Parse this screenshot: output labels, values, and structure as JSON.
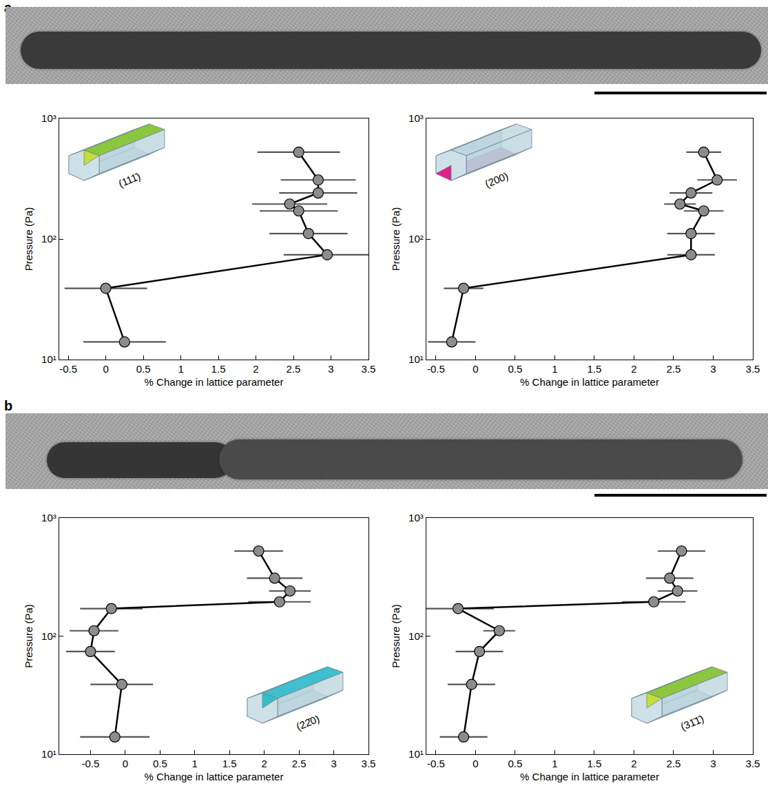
{
  "panels": [
    {
      "label": "a"
    },
    {
      "label": "b"
    }
  ],
  "chart_data": [
    {
      "type": "line",
      "marker": "circle",
      "line_style": "solid",
      "color": "#8c8c8c",
      "log": "y",
      "xlabel": "% Change in lattice parameter",
      "ylabel": "Pressure (Pa)",
      "x": [
        0.25,
        0.0,
        2.95,
        2.7,
        2.57,
        2.45,
        2.83,
        2.83,
        2.57
      ],
      "y": [
        14,
        39,
        74,
        111,
        171,
        195,
        241,
        309,
        525
      ],
      "x_error": [
        0.55,
        0.55,
        0.58,
        0.52,
        0.52,
        0.5,
        0.52,
        0.5,
        0.55
      ],
      "xlim": [
        -0.62,
        3.5
      ],
      "ylim": [
        10,
        1000
      ],
      "xticks": [
        -0.5,
        0,
        0.5,
        1,
        1.5,
        2,
        2.5,
        3,
        3.5
      ],
      "yticks": [
        {
          "value": 10,
          "label": "10¹"
        },
        {
          "value": 100,
          "label": "10²"
        },
        {
          "value": 1000,
          "label": "10³"
        }
      ],
      "annotations": [
        {
          "text": "(111̄)"
        }
      ]
    },
    {
      "type": "line",
      "marker": "circle",
      "line_style": "solid",
      "color": "#8c8c8c",
      "log": "y",
      "xlabel": "% Change in lattice parameter",
      "ylabel": "Pressure (Pa)",
      "x": [
        -0.3,
        -0.15,
        2.72,
        2.72,
        2.88,
        2.58,
        2.72,
        3.05,
        2.88
      ],
      "y": [
        14,
        39,
        74,
        111,
        171,
        195,
        241,
        309,
        525
      ],
      "x_error": [
        0.3,
        0.25,
        0.3,
        0.3,
        0.25,
        0.2,
        0.27,
        0.25,
        0.22
      ],
      "xlim": [
        -0.62,
        3.5
      ],
      "ylim": [
        10,
        1000
      ],
      "xticks": [
        -0.5,
        0,
        0.5,
        1,
        1.5,
        2,
        2.5,
        3,
        3.5
      ],
      "yticks": [
        {
          "value": 10,
          "label": "10¹"
        },
        {
          "value": 100,
          "label": "10²"
        },
        {
          "value": 1000,
          "label": "10³"
        }
      ],
      "annotations": [
        {
          "text": "(200)"
        }
      ]
    },
    {
      "type": "line",
      "marker": "circle",
      "line_style": "solid",
      "color": "#8c8c8c",
      "log": "y",
      "xlabel": "% Change in lattice parameter",
      "ylabel": "Pressure (Pa)",
      "x": [
        -0.15,
        -0.05,
        -0.5,
        -0.45,
        -0.2,
        2.22,
        2.37,
        2.15,
        1.92
      ],
      "y": [
        14,
        39,
        74,
        111,
        171,
        195,
        241,
        309,
        525
      ],
      "x_error": [
        0.5,
        0.45,
        0.35,
        0.35,
        0.45,
        0.45,
        0.3,
        0.4,
        0.35
      ],
      "xlim": [
        -0.95,
        3.5
      ],
      "ylim": [
        10,
        1000
      ],
      "xticks": [
        -0.5,
        0,
        0.5,
        1,
        1.5,
        2,
        2.5,
        3,
        3.5
      ],
      "yticks": [
        {
          "value": 10,
          "label": "10¹"
        },
        {
          "value": 100,
          "label": "10²"
        },
        {
          "value": 1000,
          "label": "10³"
        }
      ],
      "annotations": [
        {
          "text": "(22̄0)"
        }
      ]
    },
    {
      "type": "line",
      "marker": "circle",
      "line_style": "solid",
      "color": "#8c8c8c",
      "log": "y",
      "xlabel": "% Change in lattice parameter",
      "ylabel": "Pressure (Pa)",
      "x": [
        -0.15,
        -0.05,
        0.05,
        0.3,
        -0.22,
        2.25,
        2.55,
        2.45,
        2.6
      ],
      "y": [
        14,
        39,
        74,
        111,
        171,
        195,
        241,
        309,
        525
      ],
      "x_error": [
        0.3,
        0.3,
        0.3,
        0.2,
        0.45,
        0.4,
        0.25,
        0.3,
        0.3
      ],
      "xlim": [
        -0.62,
        3.5
      ],
      "ylim": [
        10,
        1000
      ],
      "xticks": [
        -0.5,
        0,
        0.5,
        1,
        1.5,
        2,
        2.5,
        3,
        3.5
      ],
      "yticks": [
        {
          "value": 10,
          "label": "10¹"
        },
        {
          "value": 100,
          "label": "10²"
        },
        {
          "value": 1000,
          "label": "10³"
        }
      ],
      "annotations": [
        {
          "text": "(31̄1̄)"
        }
      ]
    }
  ]
}
